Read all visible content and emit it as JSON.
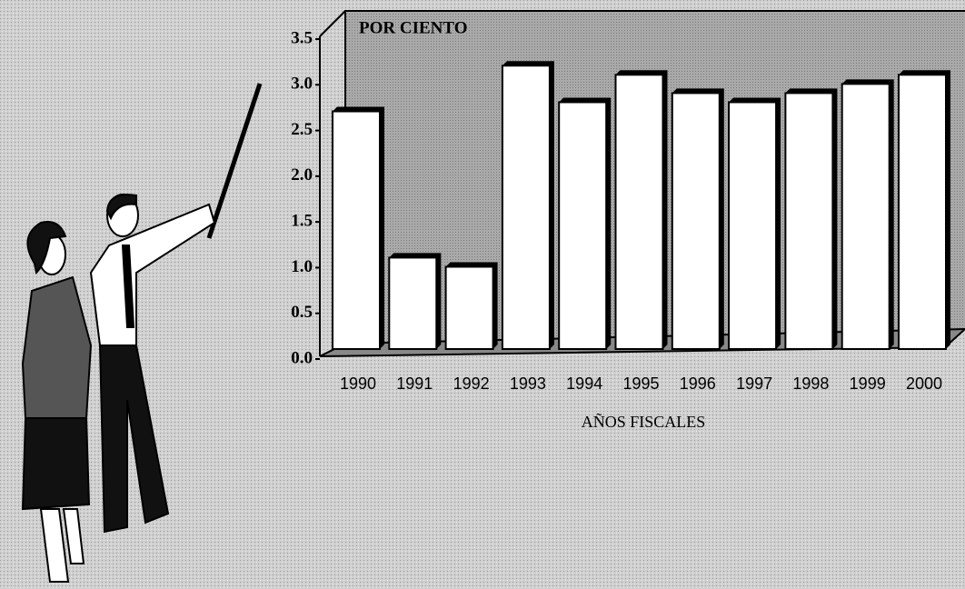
{
  "chart_data": {
    "type": "bar",
    "title": "POR CIENTO",
    "x_label": "AÑOS FISCALES",
    "categories": [
      "1990",
      "1991",
      "1992",
      "1993",
      "1994",
      "1995",
      "1996",
      "1997",
      "1998",
      "1999",
      "2000"
    ],
    "values": [
      2.6,
      1.0,
      0.9,
      3.1,
      2.7,
      3.0,
      2.8,
      2.7,
      2.8,
      2.9,
      3.0
    ],
    "color": "#ffffff",
    "ylim": [
      0,
      3.5
    ],
    "yticks": [
      {
        "value": 0,
        "label": "0.0"
      },
      0.5,
      {
        "value": 1,
        "label": "1.0"
      },
      1.5,
      {
        "value": 2,
        "label": "2.0"
      },
      2.5,
      {
        "value": 3,
        "label": "3.0"
      },
      3.5
    ]
  }
}
